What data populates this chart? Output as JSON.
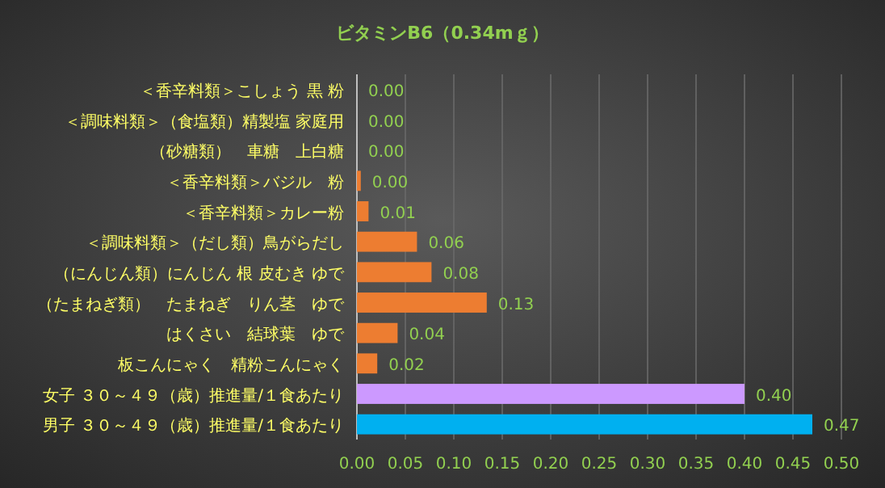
{
  "chart_data": {
    "type": "bar",
    "orientation": "horizontal",
    "title": "ビタミンB6（0.34mｇ）",
    "categories": [
      "＜香辛料類＞こしょう 黒 粉",
      "＜調味料類＞（食塩類）精製塩 家庭用",
      "（砂糖類）　車糖　上白糖",
      "＜香辛料類＞バジル　粉",
      "＜香辛料類＞カレー粉",
      "＜調味料類＞（だし類）鳥がらだし",
      "（にんじん類）にんじん 根 皮むき ゆで",
      "（たまねぎ類）　たまねぎ　りん茎　ゆで",
      "はくさい　結球葉　ゆで",
      "板こんにゃく　精粉こんにゃく",
      "女子 ３０～４９（歳）推進量/１食あたり",
      "男子 ３０～４９（歳）推進量/１食あたり"
    ],
    "values": [
      0,
      0,
      0,
      0.004,
      0.012,
      0.062,
      0.077,
      0.134,
      0.042,
      0.021,
      0.4,
      0.47
    ],
    "value_labels": [
      "0.00",
      "0.00",
      "0.00",
      "0.00",
      "0.01",
      "0.06",
      "0.08",
      "0.13",
      "0.04",
      "0.02",
      "0.40",
      "0.47"
    ],
    "colors": [
      "#ed7d31",
      "#ed7d31",
      "#ed7d31",
      "#ed7d31",
      "#ed7d31",
      "#ed7d31",
      "#ed7d31",
      "#ed7d31",
      "#ed7d31",
      "#ed7d31",
      "#cc99ff",
      "#00b0f0"
    ],
    "xlim": [
      0,
      0.5
    ],
    "xticks": [
      {
        "value": 0,
        "label": "0.00"
      },
      {
        "value": 0.05,
        "label": "0.05"
      },
      {
        "value": 0.1,
        "label": "0.10"
      },
      {
        "value": 0.15,
        "label": "0.15"
      },
      {
        "value": 0.2,
        "label": "0.20"
      },
      {
        "value": 0.25,
        "label": "0.25"
      },
      {
        "value": 0.3,
        "label": "0.30"
      },
      {
        "value": 0.35,
        "label": "0.35"
      },
      {
        "value": 0.4,
        "label": "0.40"
      },
      {
        "value": 0.45,
        "label": "0.45"
      },
      {
        "value": 0.5,
        "label": "0.50"
      }
    ],
    "grid": "x"
  }
}
